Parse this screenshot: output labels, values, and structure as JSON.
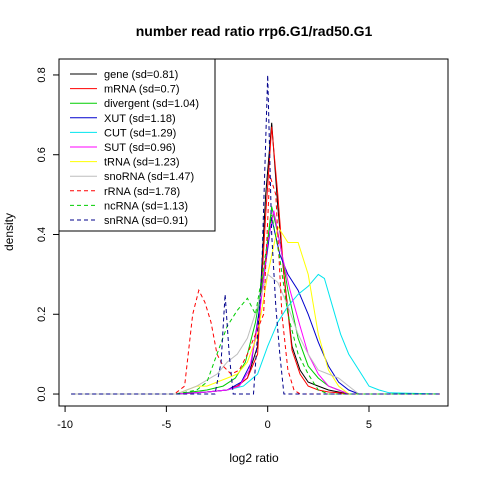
{
  "chart_data": {
    "type": "line",
    "title": "number read ratio rrp6.G1/rad50.G1",
    "xlabel": "log2 ratio",
    "ylabel": "density",
    "xlim": [
      -10.3,
      8.9
    ],
    "ylim": [
      -0.03,
      0.84
    ],
    "xticks": [
      -10,
      -5,
      0,
      5
    ],
    "yticks": [
      0.0,
      0.2,
      0.4,
      0.6,
      0.8
    ],
    "xtick_labels": [
      "-10",
      "-5",
      "0",
      "5"
    ],
    "ytick_labels": [
      "0.0",
      "0.2",
      "0.4",
      "0.6",
      "0.8"
    ],
    "grid": false,
    "legend_position": "top-left",
    "series": [
      {
        "name": "gene (sd=0.81)",
        "color": "#000000",
        "dash": "solid",
        "x": [
          -9.7,
          -4.5,
          -3.0,
          -2.0,
          -1.5,
          -1.0,
          -0.5,
          -0.1,
          0.2,
          0.5,
          0.8,
          1.2,
          1.6,
          2.0,
          2.5,
          3.0,
          3.5,
          4.0,
          8.5
        ],
        "y": [
          0,
          0,
          0.005,
          0.01,
          0.02,
          0.04,
          0.12,
          0.5,
          0.68,
          0.47,
          0.3,
          0.12,
          0.06,
          0.03,
          0.02,
          0.01,
          0.005,
          0,
          0
        ]
      },
      {
        "name": "mRNA (sd=0.7)",
        "color": "#FF0000",
        "dash": "solid",
        "x": [
          -9.7,
          -4.5,
          -3.0,
          -2.0,
          -1.5,
          -1.0,
          -0.5,
          -0.1,
          0.2,
          0.5,
          0.8,
          1.2,
          1.6,
          2.0,
          2.5,
          3.0,
          3.5,
          4.0,
          8.5
        ],
        "y": [
          0,
          0,
          0.005,
          0.01,
          0.02,
          0.04,
          0.1,
          0.45,
          0.67,
          0.5,
          0.3,
          0.11,
          0.05,
          0.02,
          0.01,
          0.005,
          0.003,
          0,
          0
        ]
      },
      {
        "name": "divergent (sd=1.04)",
        "color": "#00CD00",
        "dash": "solid",
        "x": [
          -9.7,
          -4.5,
          -3.0,
          -2.2,
          -1.6,
          -1.1,
          -0.6,
          -0.2,
          0.2,
          0.6,
          1.0,
          1.5,
          2.0,
          2.5,
          3.0,
          3.5,
          4.0,
          8.5
        ],
        "y": [
          0,
          0,
          0.01,
          0.02,
          0.04,
          0.08,
          0.18,
          0.3,
          0.47,
          0.38,
          0.26,
          0.14,
          0.07,
          0.04,
          0.02,
          0.01,
          0,
          0
        ]
      },
      {
        "name": "XUT (sd=1.18)",
        "color": "#0000CD",
        "dash": "solid",
        "x": [
          -9.7,
          -4.5,
          -3.0,
          -2.0,
          -1.3,
          -0.8,
          -0.3,
          0.2,
          0.6,
          1.0,
          1.5,
          2.0,
          2.5,
          3.0,
          3.5,
          4.0,
          4.5,
          8.5
        ],
        "y": [
          0,
          0,
          0.005,
          0.01,
          0.03,
          0.08,
          0.25,
          0.44,
          0.35,
          0.3,
          0.26,
          0.2,
          0.13,
          0.07,
          0.03,
          0.01,
          0,
          0
        ]
      },
      {
        "name": "CUT (sd=1.29)",
        "color": "#00E5EE",
        "dash": "solid",
        "x": [
          -9.7,
          -4.5,
          -3.0,
          -2.0,
          -1.2,
          -0.5,
          0.0,
          0.5,
          1.0,
          1.5,
          2.0,
          2.5,
          2.8,
          3.2,
          3.6,
          4.0,
          4.5,
          5.0,
          5.5,
          6.0,
          8.5
        ],
        "y": [
          0,
          0,
          0.005,
          0.01,
          0.02,
          0.05,
          0.12,
          0.18,
          0.22,
          0.25,
          0.27,
          0.3,
          0.29,
          0.22,
          0.15,
          0.1,
          0.06,
          0.02,
          0.01,
          0.003,
          0
        ]
      },
      {
        "name": "SUT (sd=0.96)",
        "color": "#FF00FF",
        "dash": "solid",
        "x": [
          -9.7,
          -4.5,
          -3.0,
          -2.0,
          -1.4,
          -0.9,
          -0.4,
          0.0,
          0.3,
          0.7,
          1.1,
          1.6,
          2.0,
          2.5,
          3.0,
          3.5,
          4.0,
          8.5
        ],
        "y": [
          0,
          0,
          0.005,
          0.01,
          0.02,
          0.06,
          0.2,
          0.38,
          0.46,
          0.35,
          0.26,
          0.17,
          0.1,
          0.05,
          0.02,
          0.01,
          0,
          0
        ]
      },
      {
        "name": "tRNA (sd=1.23)",
        "color": "#FFFF00",
        "dash": "solid",
        "x": [
          -9.7,
          -4.5,
          -3.5,
          -3.0,
          -2.5,
          -2.0,
          -1.5,
          -1.0,
          -0.5,
          0.0,
          0.5,
          1.0,
          1.5,
          2.0,
          2.5,
          3.0,
          3.5,
          4.0,
          8.5
        ],
        "y": [
          0,
          0,
          0.02,
          0.02,
          0.03,
          0.04,
          0.05,
          0.08,
          0.15,
          0.3,
          0.42,
          0.38,
          0.38,
          0.3,
          0.15,
          0.06,
          0.02,
          0,
          0
        ]
      },
      {
        "name": "snoRNA (sd=1.47)",
        "color": "#BEBEBE",
        "dash": "solid",
        "x": [
          -9.7,
          -4.5,
          -3.5,
          -2.5,
          -2.0,
          -1.5,
          -1.0,
          -0.5,
          0.0,
          0.5,
          1.0,
          1.5,
          2.0,
          2.5,
          3.0,
          3.5,
          4.0,
          4.5,
          8.5
        ],
        "y": [
          0,
          0,
          0.02,
          0.05,
          0.08,
          0.1,
          0.14,
          0.22,
          0.3,
          0.28,
          0.22,
          0.15,
          0.1,
          0.06,
          0.05,
          0.04,
          0.02,
          0,
          0
        ]
      },
      {
        "name": "rRNA (sd=1.78)",
        "color": "#FF0000",
        "dash": "dashed",
        "x": [
          -9.7,
          -4.6,
          -4.1,
          -3.7,
          -3.4,
          -3.1,
          -2.8,
          -2.5,
          -2.2,
          -1.8,
          -1.4,
          -1.0,
          -0.6,
          -0.2,
          0.1,
          0.4,
          0.7,
          1.0,
          1.3,
          1.6,
          8.5
        ],
        "y": [
          0,
          0,
          0.02,
          0.2,
          0.26,
          0.23,
          0.18,
          0.1,
          0.07,
          0.05,
          0.06,
          0.1,
          0.15,
          0.2,
          0.55,
          0.5,
          0.2,
          0.06,
          0.01,
          0,
          0
        ]
      },
      {
        "name": "ncRNA (sd=1.13)",
        "color": "#00CD00",
        "dash": "dashed",
        "x": [
          -9.7,
          -4.5,
          -3.5,
          -3.0,
          -2.5,
          -2.0,
          -1.5,
          -1.0,
          -0.6,
          -0.2,
          0.2,
          0.6,
          1.0,
          1.5,
          2.0,
          2.5,
          3.0,
          8.5
        ],
        "y": [
          0,
          0,
          0.01,
          0.03,
          0.1,
          0.17,
          0.21,
          0.24,
          0.2,
          0.32,
          0.45,
          0.34,
          0.2,
          0.1,
          0.05,
          0.01,
          0,
          0
        ]
      },
      {
        "name": "snRNA (sd=0.91)",
        "color": "#00008B",
        "dash": "dashed",
        "x": [
          -9.7,
          -4.3,
          -3.0,
          -2.6,
          -2.3,
          -2.1,
          -1.9,
          -1.7,
          -0.7,
          -0.3,
          0.0,
          0.2,
          0.4,
          0.6,
          0.8,
          1.0,
          8.5
        ],
        "y": [
          0,
          0,
          0,
          0,
          0.08,
          0.25,
          0.1,
          0,
          0,
          0.3,
          0.8,
          0.4,
          0.22,
          0.1,
          0,
          0,
          0
        ]
      }
    ]
  }
}
